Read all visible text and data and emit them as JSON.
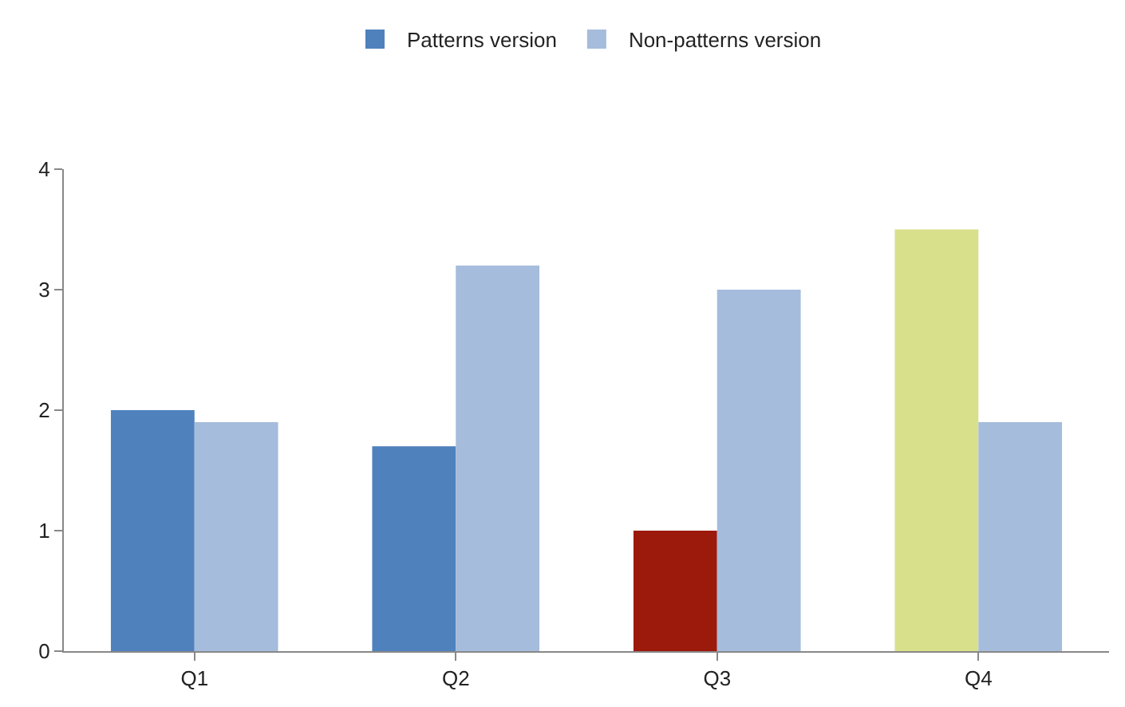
{
  "chart_data": {
    "type": "bar",
    "categories": [
      "Q1",
      "Q2",
      "Q3",
      "Q4"
    ],
    "series": [
      {
        "name": "Patterns version",
        "color": "#4f81bd",
        "colors": [
          "#4f81bd",
          "#4f81bd",
          "#9c1a0c",
          "#d9e08b"
        ],
        "values": [
          2.0,
          1.7,
          1.0,
          3.5
        ]
      },
      {
        "name": "Non-patterns version",
        "color": "#a5bcdc",
        "values": [
          1.9,
          3.2,
          3.0,
          1.9
        ]
      }
    ],
    "ylim": [
      0,
      4
    ],
    "yticks": [
      0,
      1,
      2,
      3,
      4
    ],
    "grid": false,
    "legend": "top"
  }
}
